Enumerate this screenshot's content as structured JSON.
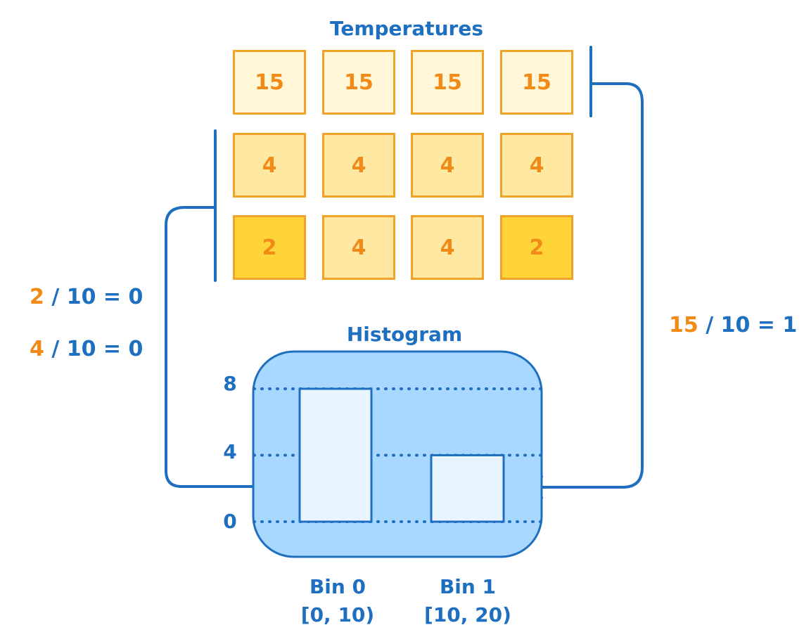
{
  "temperatures": {
    "title": "Temperatures",
    "rows": [
      [
        "15",
        "15",
        "15",
        "15"
      ],
      [
        "4",
        "4",
        "4",
        "4"
      ],
      [
        "2",
        "4",
        "4",
        "2"
      ]
    ]
  },
  "calculations": {
    "left": [
      {
        "value": "2",
        "expression": "/ 10 = 0"
      },
      {
        "value": "4",
        "expression": "/ 10 = 0"
      }
    ],
    "right": {
      "value": "15",
      "expression": "/ 10 = 1"
    }
  },
  "histogram": {
    "title": "Histogram",
    "y_ticks": [
      "8",
      "4",
      "0"
    ],
    "bins": [
      {
        "name": "Bin 0",
        "range": "[0, 10)"
      },
      {
        "name": "Bin 1",
        "range": "[10, 20)"
      }
    ]
  },
  "chart_data": {
    "type": "bar",
    "title": "Histogram",
    "categories": [
      "Bin 0",
      "Bin 1"
    ],
    "values": [
      8,
      4
    ],
    "ylim": [
      0,
      8
    ],
    "y_ticks": [
      0,
      4,
      8
    ],
    "grid": true
  },
  "colors": {
    "blue": "#1f6fc0",
    "orange": "#f18a16",
    "cell_15": "#fff7d7",
    "cell_4": "#ffe8a1",
    "cell_2": "#ffd438",
    "histogram_panel": "#a8d8ff",
    "histogram_bar": "#e8f5ff"
  }
}
